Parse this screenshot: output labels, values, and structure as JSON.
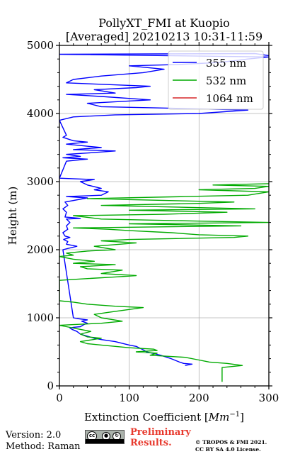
{
  "chart_data": {
    "type": "line",
    "title_line1": "PollyXT_FMI at Kuopio",
    "title_line2": "[Averaged] 20210213 10:31-11:59",
    "xlabel": "Extinction Coefficient [",
    "xlabel_unit": "Mm",
    "xlabel_exp": "−1",
    "xlabel_close": "]",
    "ylabel": "Height (m)",
    "xlim": [
      0,
      300
    ],
    "ylim": [
      0,
      5000
    ],
    "xticks": [
      0,
      100,
      200,
      300
    ],
    "yticks": [
      0,
      1000,
      2000,
      3000,
      4000,
      5000
    ],
    "grid": true,
    "legend_position": "top-right",
    "series": [
      {
        "name": "355 nm",
        "color": "#0000ff",
        "points": [
          [
            180,
            300
          ],
          [
            190,
            320
          ],
          [
            178,
            330
          ],
          [
            172,
            350
          ],
          [
            160,
            400
          ],
          [
            145,
            450
          ],
          [
            125,
            500
          ],
          [
            120,
            530
          ],
          [
            110,
            580
          ],
          [
            100,
            600
          ],
          [
            80,
            650
          ],
          [
            60,
            680
          ],
          [
            50,
            700
          ],
          [
            40,
            730
          ],
          [
            30,
            760
          ],
          [
            25,
            800
          ],
          [
            18,
            830
          ],
          [
            15,
            850
          ],
          [
            20,
            860
          ],
          [
            30,
            870
          ],
          [
            35,
            900
          ],
          [
            40,
            920
          ],
          [
            32,
            950
          ],
          [
            40,
            970
          ],
          [
            25,
            990
          ],
          [
            20,
            1000
          ],
          [
            5,
            2000
          ],
          [
            25,
            2050
          ],
          [
            10,
            2080
          ],
          [
            12,
            2120
          ],
          [
            6,
            2150
          ],
          [
            15,
            2180
          ],
          [
            8,
            2200
          ],
          [
            5,
            2250
          ],
          [
            12,
            2300
          ],
          [
            10,
            2350
          ],
          [
            15,
            2400
          ],
          [
            10,
            2450
          ],
          [
            30,
            2460
          ],
          [
            8,
            2480
          ],
          [
            10,
            2550
          ],
          [
            5,
            2600
          ],
          [
            12,
            2650
          ],
          [
            8,
            2700
          ],
          [
            40,
            2760
          ],
          [
            10,
            2780
          ],
          [
            60,
            2800
          ],
          [
            70,
            2850
          ],
          [
            50,
            2880
          ],
          [
            60,
            2900
          ],
          [
            40,
            2950
          ],
          [
            30,
            3000
          ],
          [
            50,
            3030
          ],
          [
            0,
            3050
          ],
          [
            10,
            3300
          ],
          [
            40,
            3330
          ],
          [
            5,
            3350
          ],
          [
            30,
            3370
          ],
          [
            10,
            3400
          ],
          [
            40,
            3420
          ],
          [
            80,
            3450
          ],
          [
            20,
            3470
          ],
          [
            60,
            3500
          ],
          [
            10,
            3550
          ],
          [
            40,
            3580
          ],
          [
            20,
            3600
          ],
          [
            5,
            3650
          ],
          [
            10,
            3680
          ],
          [
            0,
            3900
          ],
          [
            20,
            3950
          ],
          [
            80,
            3980
          ],
          [
            200,
            4000
          ],
          [
            270,
            4050
          ],
          [
            150,
            4080
          ],
          [
            60,
            4100
          ],
          [
            40,
            4150
          ],
          [
            130,
            4200
          ],
          [
            60,
            4250
          ],
          [
            10,
            4280
          ],
          [
            80,
            4300
          ],
          [
            50,
            4350
          ],
          [
            110,
            4380
          ],
          [
            130,
            4400
          ],
          [
            10,
            4450
          ],
          [
            20,
            4500
          ],
          [
            60,
            4550
          ],
          [
            120,
            4600
          ],
          [
            150,
            4650
          ],
          [
            100,
            4700
          ],
          [
            170,
            4720
          ],
          [
            230,
            4750
          ],
          [
            270,
            4800
          ],
          [
            300,
            4830
          ],
          [
            150,
            4850
          ],
          [
            0,
            4870
          ],
          [
            280,
            4880
          ],
          [
            300,
            4850
          ]
        ]
      },
      {
        "name": "532 nm",
        "color": "#00aa00",
        "points": [
          [
            233,
            60
          ],
          [
            233,
            270
          ],
          [
            262,
            300
          ],
          [
            240,
            330
          ],
          [
            215,
            350
          ],
          [
            200,
            380
          ],
          [
            180,
            420
          ],
          [
            130,
            450
          ],
          [
            140,
            480
          ],
          [
            110,
            500
          ],
          [
            140,
            520
          ],
          [
            135,
            540
          ],
          [
            100,
            560
          ],
          [
            60,
            600
          ],
          [
            40,
            620
          ],
          [
            30,
            650
          ],
          [
            60,
            700
          ],
          [
            40,
            720
          ],
          [
            30,
            760
          ],
          [
            45,
            800
          ],
          [
            20,
            850
          ],
          [
            10,
            870
          ],
          [
            0,
            890
          ],
          [
            20,
            900
          ],
          [
            60,
            920
          ],
          [
            90,
            950
          ],
          [
            60,
            1000
          ],
          [
            50,
            1050
          ],
          [
            70,
            1080
          ],
          [
            120,
            1150
          ],
          [
            80,
            1170
          ],
          [
            40,
            1200
          ],
          [
            20,
            1230
          ],
          [
            0,
            1250
          ],
          [
            0,
            1550
          ],
          [
            30,
            1570
          ],
          [
            80,
            1600
          ],
          [
            110,
            1620
          ],
          [
            60,
            1650
          ],
          [
            90,
            1700
          ],
          [
            40,
            1720
          ],
          [
            30,
            1750
          ],
          [
            80,
            1780
          ],
          [
            20,
            1800
          ],
          [
            50,
            1830
          ],
          [
            20,
            1860
          ],
          [
            0,
            1900
          ],
          [
            20,
            1920
          ],
          [
            10,
            1950
          ],
          [
            40,
            1980
          ],
          [
            80,
            2000
          ],
          [
            50,
            2050
          ],
          [
            110,
            2100
          ],
          [
            60,
            2130
          ],
          [
            100,
            2150
          ],
          [
            250,
            2180
          ],
          [
            270,
            2200
          ],
          [
            200,
            2220
          ],
          [
            160,
            2250
          ],
          [
            100,
            2280
          ],
          [
            70,
            2300
          ],
          [
            20,
            2320
          ],
          [
            260,
            2350
          ],
          [
            100,
            2380
          ],
          [
            300,
            2400
          ],
          [
            200,
            2420
          ],
          [
            60,
            2450
          ],
          [
            20,
            2500
          ],
          [
            150,
            2520
          ],
          [
            240,
            2550
          ],
          [
            100,
            2580
          ],
          [
            280,
            2600
          ],
          [
            60,
            2650
          ],
          [
            200,
            2680
          ],
          [
            250,
            2700
          ],
          [
            40,
            2750
          ],
          [
            180,
            2780
          ],
          [
            270,
            2800
          ],
          [
            300,
            2850
          ],
          [
            200,
            2880
          ],
          [
            280,
            2900
          ],
          [
            300,
            2930
          ],
          [
            220,
            2950
          ],
          [
            300,
            2970
          ]
        ]
      },
      {
        "name": "1064 nm",
        "color": "#d62728",
        "points": []
      }
    ]
  },
  "footer": {
    "version": "Version: 2.0",
    "method": "Method: Raman",
    "cc_by": "BY",
    "cc_sa": "SA",
    "preliminary_line1": "Preliminary",
    "preliminary_line2": "Results.",
    "copyright_line1": "© TROPOS & FMI 2021.",
    "copyright_line2": "CC BY SA 4.0 License."
  }
}
